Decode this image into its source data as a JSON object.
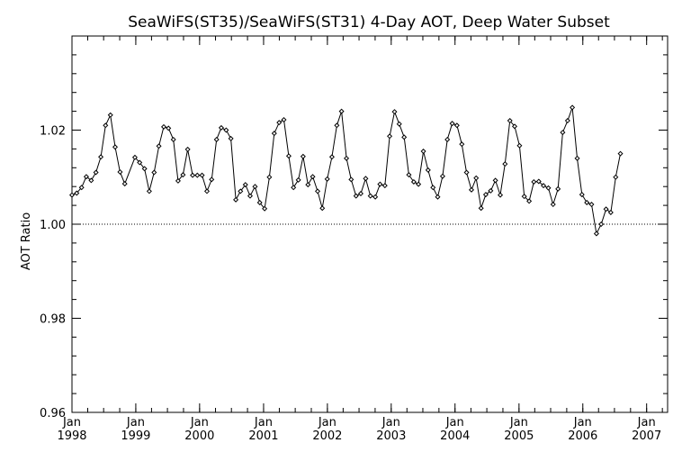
{
  "chart_data": {
    "type": "line",
    "title": "SeaWiFS(ST35)/SeaWiFS(ST31) 4-Day AOT, Deep Water Subset",
    "xlabel": "",
    "ylabel": "AOT Ratio",
    "xlim": [
      "1998-01-01",
      "2007-05-01"
    ],
    "ylim": [
      0.96,
      1.04
    ],
    "y_ticks": [
      {
        "value": 0.96,
        "label": "0.96"
      },
      {
        "value": 0.98,
        "label": "0.98"
      },
      {
        "value": 1.0,
        "label": "1.00"
      },
      {
        "value": 1.02,
        "label": "1.02"
      }
    ],
    "x_ticks": [
      {
        "date": "1998-01-01",
        "month": "Jan",
        "year": "1998"
      },
      {
        "date": "1999-01-01",
        "month": "Jan",
        "year": "1999"
      },
      {
        "date": "2000-01-01",
        "month": "Jan",
        "year": "2000"
      },
      {
        "date": "2001-01-01",
        "month": "Jan",
        "year": "2001"
      },
      {
        "date": "2002-01-01",
        "month": "Jan",
        "year": "2002"
      },
      {
        "date": "2003-01-01",
        "month": "Jan",
        "year": "2003"
      },
      {
        "date": "2004-01-01",
        "month": "Jan",
        "year": "2004"
      },
      {
        "date": "2005-01-01",
        "month": "Jan",
        "year": "2005"
      },
      {
        "date": "2006-01-01",
        "month": "Jan",
        "year": "2006"
      },
      {
        "date": "2007-01-01",
        "month": "Jan",
        "year": "2007"
      }
    ],
    "reference_line": {
      "y": 1.0,
      "style": "dotted"
    },
    "grid": false,
    "series": [
      {
        "marker": "diamond",
        "points": [
          [
            "1998-01-01",
            1.0062
          ],
          [
            "1998-01-28",
            1.0066
          ],
          [
            "1998-02-25",
            1.0078
          ],
          [
            "1998-03-24",
            1.0101
          ],
          [
            "1998-04-21",
            1.0093
          ],
          [
            "1998-05-18",
            1.011
          ],
          [
            "1998-06-15",
            1.0143
          ],
          [
            "1998-07-12",
            1.021
          ],
          [
            "1998-08-09",
            1.0232
          ],
          [
            "1998-09-05",
            1.0164
          ],
          [
            "1998-10-03",
            1.0111
          ],
          [
            "1998-10-30",
            1.0086
          ],
          [
            "1998-12-27",
            1.0142
          ],
          [
            "1999-01-23",
            1.0131
          ],
          [
            "1999-02-20",
            1.0118
          ],
          [
            "1999-03-19",
            1.007
          ],
          [
            "1999-04-16",
            1.011
          ],
          [
            "1999-05-13",
            1.0166
          ],
          [
            "1999-06-10",
            1.0207
          ],
          [
            "1999-07-07",
            1.0204
          ],
          [
            "1999-08-04",
            1.018
          ],
          [
            "1999-08-31",
            1.0092
          ],
          [
            "1999-09-28",
            1.0105
          ],
          [
            "1999-10-25",
            1.0159
          ],
          [
            "1999-11-22",
            1.0104
          ],
          [
            "1999-12-19",
            1.0104
          ],
          [
            "2000-01-15",
            1.0104
          ],
          [
            "2000-02-12",
            1.007
          ],
          [
            "2000-03-10",
            1.0095
          ],
          [
            "2000-04-07",
            1.018
          ],
          [
            "2000-05-04",
            1.0205
          ],
          [
            "2000-06-01",
            1.02
          ],
          [
            "2000-06-28",
            1.0182
          ],
          [
            "2000-07-26",
            1.0052
          ],
          [
            "2000-08-22",
            1.007
          ],
          [
            "2000-09-19",
            1.0084
          ],
          [
            "2000-10-16",
            1.006
          ],
          [
            "2000-11-13",
            1.008
          ],
          [
            "2000-12-10",
            1.0046
          ],
          [
            "2001-01-07",
            1.0033
          ],
          [
            "2001-02-03",
            1.01
          ],
          [
            "2001-03-03",
            1.0193
          ],
          [
            "2001-03-31",
            1.0216
          ],
          [
            "2001-04-27",
            1.0222
          ],
          [
            "2001-05-25",
            1.0145
          ],
          [
            "2001-06-21",
            1.0078
          ],
          [
            "2001-07-19",
            1.0094
          ],
          [
            "2001-08-15",
            1.0144
          ],
          [
            "2001-09-12",
            1.0084
          ],
          [
            "2001-10-09",
            1.0101
          ],
          [
            "2001-11-06",
            1.007
          ],
          [
            "2001-12-03",
            1.0034
          ],
          [
            "2001-12-31",
            1.0096
          ],
          [
            "2002-01-27",
            1.0143
          ],
          [
            "2002-02-24",
            1.021
          ],
          [
            "2002-03-23",
            1.024
          ],
          [
            "2002-04-20",
            1.014
          ],
          [
            "2002-05-17",
            1.0095
          ],
          [
            "2002-06-14",
            1.006
          ],
          [
            "2002-07-11",
            1.0065
          ],
          [
            "2002-08-08",
            1.0097
          ],
          [
            "2002-09-04",
            1.006
          ],
          [
            "2002-10-02",
            1.0058
          ],
          [
            "2002-10-29",
            1.0085
          ],
          [
            "2002-11-26",
            1.0082
          ],
          [
            "2002-12-23",
            1.0187
          ],
          [
            "2003-01-20",
            1.0239
          ],
          [
            "2003-02-16",
            1.0213
          ],
          [
            "2003-03-16",
            1.0185
          ],
          [
            "2003-04-12",
            1.0105
          ],
          [
            "2003-05-10",
            1.009
          ],
          [
            "2003-06-06",
            1.0085
          ],
          [
            "2003-07-04",
            1.0155
          ],
          [
            "2003-07-31",
            1.0115
          ],
          [
            "2003-08-28",
            1.0078
          ],
          [
            "2003-09-24",
            1.0058
          ],
          [
            "2003-10-22",
            1.0102
          ],
          [
            "2003-11-18",
            1.018
          ],
          [
            "2003-12-16",
            1.0214
          ],
          [
            "2004-01-12",
            1.021
          ],
          [
            "2004-02-09",
            1.017
          ],
          [
            "2004-03-07",
            1.011
          ],
          [
            "2004-04-04",
            1.0073
          ],
          [
            "2004-05-01",
            1.0098
          ],
          [
            "2004-05-29",
            1.0034
          ],
          [
            "2004-06-25",
            1.0063
          ],
          [
            "2004-07-23",
            1.0071
          ],
          [
            "2004-08-19",
            1.0093
          ],
          [
            "2004-09-16",
            1.0062
          ],
          [
            "2004-10-13",
            1.0128
          ],
          [
            "2004-11-10",
            1.022
          ],
          [
            "2004-12-07",
            1.0208
          ],
          [
            "2005-01-04",
            1.0167
          ],
          [
            "2005-01-31",
            1.0059
          ],
          [
            "2005-02-28",
            1.0049
          ],
          [
            "2005-03-27",
            1.009
          ],
          [
            "2005-04-24",
            1.0091
          ],
          [
            "2005-05-21",
            1.0082
          ],
          [
            "2005-06-18",
            1.0077
          ],
          [
            "2005-07-15",
            1.0042
          ],
          [
            "2005-08-12",
            1.0075
          ],
          [
            "2005-09-08",
            1.0195
          ],
          [
            "2005-10-06",
            1.022
          ],
          [
            "2005-11-02",
            1.0248
          ],
          [
            "2005-11-30",
            1.014
          ],
          [
            "2005-12-27",
            1.0063
          ],
          [
            "2006-01-24",
            1.0046
          ],
          [
            "2006-02-20",
            1.0042
          ],
          [
            "2006-03-20",
            0.998
          ],
          [
            "2006-04-16",
            1.0
          ],
          [
            "2006-05-14",
            1.0032
          ],
          [
            "2006-06-10",
            1.0025
          ],
          [
            "2006-07-08",
            1.01
          ],
          [
            "2006-08-04",
            1.015
          ]
        ]
      }
    ]
  }
}
